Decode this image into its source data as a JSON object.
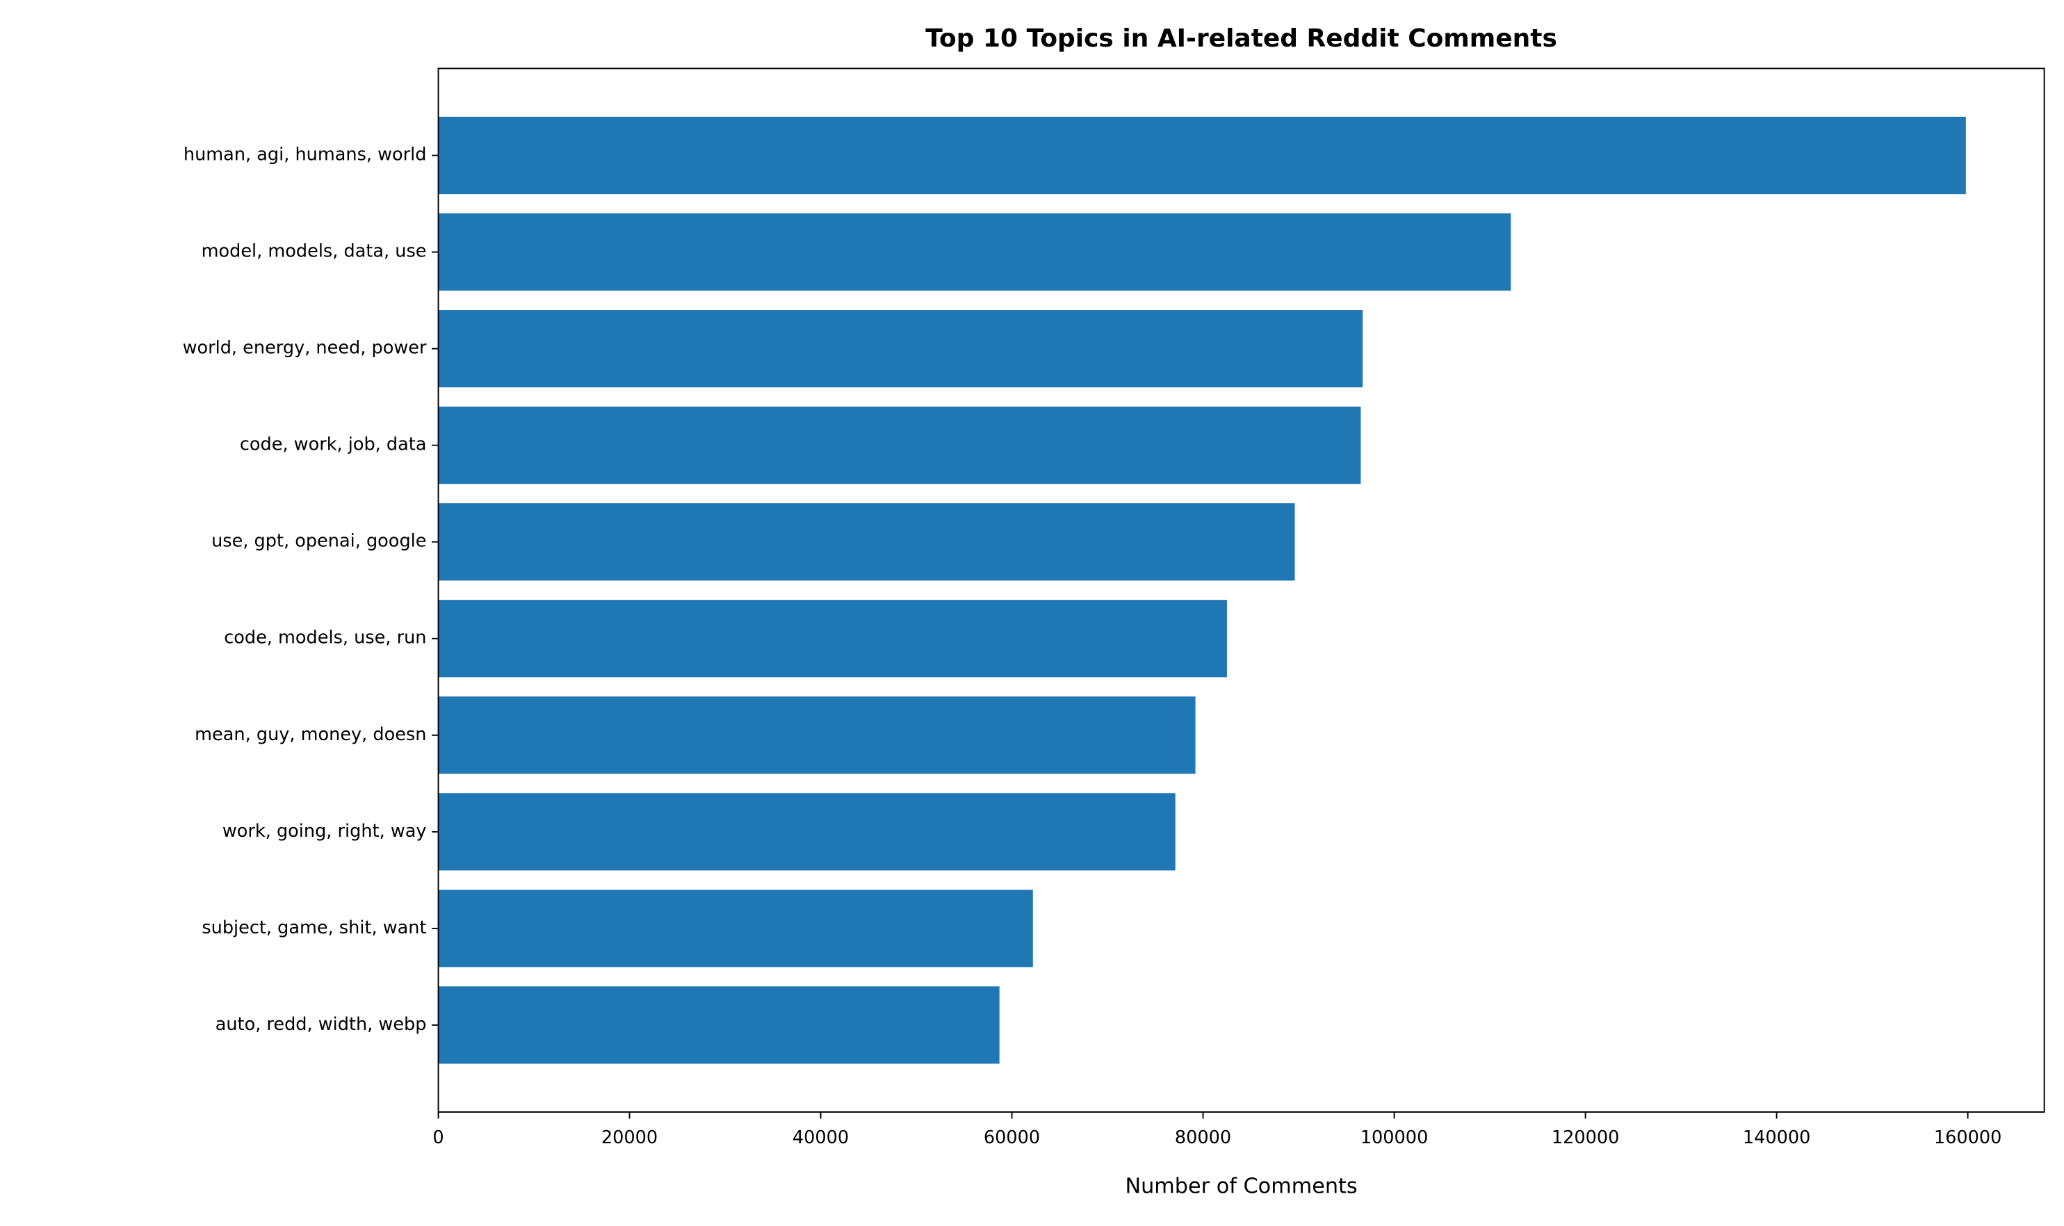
{
  "chart_data": {
    "type": "barh",
    "title": "Top 10 Topics in AI-related Reddit Comments",
    "xlabel": "Number of Comments",
    "categories": [
      "human, agi, humans, world",
      "model, models, data, use",
      "world, energy, need, power",
      "code, work, job, data",
      "use, gpt, openai, google",
      "code, models, use, run",
      "mean, guy, money, doesn",
      "work, going, right, way",
      "subject, game, shit, want",
      "auto, redd, width, webp"
    ],
    "values": [
      159800,
      112200,
      96700,
      96500,
      89600,
      82500,
      79200,
      77100,
      62200,
      58700
    ],
    "color": "#1f77b4",
    "xlim": [
      0,
      168000
    ],
    "xticks": [
      0,
      20000,
      40000,
      60000,
      80000,
      100000,
      120000,
      140000,
      160000
    ]
  }
}
